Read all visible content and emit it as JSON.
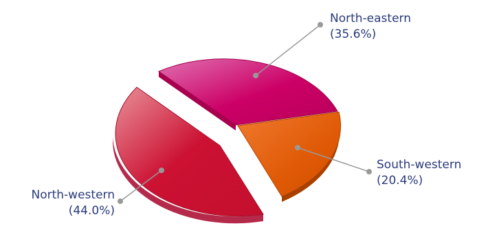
{
  "chart_data": {
    "type": "pie",
    "title": "",
    "slices": [
      {
        "name": "North-eastern",
        "value": 35.6,
        "label": "(35.6%)",
        "color": "#cc0066"
      },
      {
        "name": "South-western",
        "value": 20.4,
        "label": "(20.4%)",
        "color": "#e05a06"
      },
      {
        "name": "North-western",
        "value": 44.0,
        "label": "(44.0%)",
        "color": "#cc1133"
      }
    ],
    "style": "3d-exploded"
  }
}
